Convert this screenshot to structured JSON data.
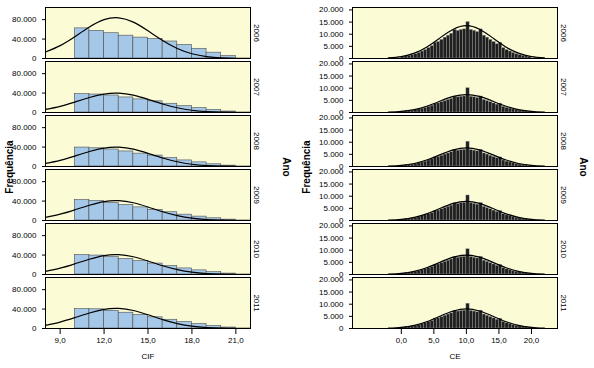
{
  "chart_data": [
    {
      "type": "histogram",
      "x_label": "CIF",
      "y_label": "Frequência",
      "facet_label": "Ano",
      "xlim": [
        8,
        22
      ],
      "xticks": [
        {
          "value": 9,
          "label": "9,0"
        },
        {
          "value": 12,
          "label": "12,0"
        },
        {
          "value": 15,
          "label": "15,0"
        },
        {
          "value": 18,
          "label": "18,0"
        },
        {
          "value": 21,
          "label": "21,0"
        }
      ],
      "ylim": [
        0,
        105000
      ],
      "yticks": [
        0,
        {
          "value": 40000,
          "label": "40.000"
        },
        {
          "value": 80000,
          "label": "80.000"
        }
      ],
      "color": "#a6c8e8",
      "curve_color": "#000000",
      "bins": [
        10,
        11,
        12,
        13,
        14,
        15,
        16,
        17,
        18,
        19,
        20,
        21
      ],
      "curve_x": [
        8,
        9,
        10,
        11,
        12,
        13,
        14,
        15,
        16,
        17,
        18,
        19,
        20,
        21,
        22
      ],
      "facets": [
        {
          "name": "2006",
          "counts": [
            62000,
            57000,
            52000,
            47000,
            43000,
            40000,
            35000,
            28000,
            20000,
            12000,
            5000
          ],
          "curve": [
            13300,
            26500,
            44900,
            64800,
            79900,
            83700,
            74900,
            57000,
            37000,
            20500,
            9700,
            3900,
            1300,
            400,
            100
          ]
        },
        {
          "name": "2007",
          "counts": [
            38000,
            37000,
            35000,
            31000,
            27000,
            23000,
            18000,
            13000,
            9000,
            5000,
            2000
          ],
          "curve": [
            6300,
            12600,
            21400,
            30800,
            38000,
            39800,
            35700,
            27100,
            17600,
            9800,
            4600,
            1860,
            620,
            190,
            50
          ]
        },
        {
          "name": "2008",
          "counts": [
            39000,
            37500,
            35000,
            31000,
            26500,
            22500,
            17500,
            12500,
            8500,
            4500,
            1800
          ],
          "curve": [
            6300,
            12600,
            21400,
            30800,
            38000,
            39800,
            35700,
            27100,
            17600,
            9800,
            4600,
            1860,
            620,
            190,
            50
          ]
        },
        {
          "name": "2009",
          "counts": [
            42000,
            40000,
            36000,
            32000,
            27000,
            22000,
            17000,
            12000,
            8000,
            4500,
            1800
          ],
          "curve": [
            6500,
            13000,
            22000,
            31500,
            39000,
            40800,
            36500,
            27800,
            18000,
            10000,
            4700,
            1900,
            640,
            200,
            50
          ]
        },
        {
          "name": "2010",
          "counts": [
            40000,
            39000,
            36000,
            32000,
            27500,
            22500,
            17500,
            12500,
            8500,
            4800,
            1900
          ],
          "curve": [
            6500,
            13000,
            22000,
            31500,
            39000,
            40800,
            36500,
            27800,
            18000,
            10000,
            4700,
            1900,
            640,
            200,
            50
          ]
        },
        {
          "name": "2011",
          "counts": [
            40000,
            39500,
            36500,
            32500,
            28000,
            23000,
            18000,
            13000,
            9000,
            5000,
            2000
          ],
          "curve": [
            6600,
            13200,
            22300,
            32000,
            39500,
            41300,
            37000,
            28200,
            18300,
            10200,
            4800,
            1950,
            650,
            200,
            50
          ]
        }
      ]
    },
    {
      "type": "histogram",
      "x_label": "CE",
      "y_label": "Frequência",
      "facet_label": "Ano",
      "xlim": [
        -7.5,
        24
      ],
      "xticks": [
        {
          "value": 0,
          "label": "0,0"
        },
        {
          "value": 5,
          "label": "5,0"
        },
        {
          "value": 10,
          "label": "10,0"
        },
        {
          "value": 15,
          "label": "15,0"
        },
        {
          "value": 20,
          "label": "20,0"
        }
      ],
      "ylim": [
        0,
        21000
      ],
      "yticks": [
        0,
        {
          "value": 5000,
          "label": "5.000"
        },
        {
          "value": 10000,
          "label": "10.000"
        },
        {
          "value": 15000,
          "label": "15.000"
        },
        {
          "value": 20000,
          "label": "20.000"
        }
      ],
      "color": "#1f1f1f",
      "curve_color": "#000000",
      "bins": [
        0,
        0.5,
        1,
        1.5,
        2,
        2.5,
        3,
        3.5,
        4,
        4.5,
        5,
        5.5,
        6,
        6.5,
        7,
        7.5,
        8,
        8.5,
        9,
        9.5,
        10,
        10.5,
        11,
        11.5,
        12,
        12.5,
        13,
        13.5,
        14,
        14.5,
        15,
        15.5,
        16,
        16.5,
        17,
        17.5,
        18,
        18.5,
        19,
        19.5,
        20
      ],
      "curve_x": [
        -2,
        0,
        2,
        4,
        6,
        8,
        10,
        12,
        14,
        16,
        18,
        20,
        22
      ],
      "facets": [
        {
          "name": "2006",
          "counts": [
            600,
            830,
            1100,
            1400,
            1800,
            2300,
            2900,
            3500,
            4300,
            5100,
            6500,
            6800,
            7700,
            8600,
            9400,
            10200,
            11800,
            11400,
            11800,
            12000,
            15000,
            11800,
            11400,
            10900,
            12000,
            9400,
            8600,
            7700,
            6800,
            5900,
            6500,
            4300,
            3500,
            2900,
            2300,
            1800,
            1400,
            1100,
            830,
            600
          ],
          "curve": [
            230,
            800,
            2200,
            4860,
            8590,
            12060,
            13500,
            12060,
            8590,
            4860,
            2200,
            800,
            230
          ]
        },
        {
          "name": "2007",
          "counts": [
            330,
            460,
            600,
            770,
            990,
            1270,
            1600,
            1930,
            2370,
            2800,
            3600,
            3740,
            4240,
            4730,
            5170,
            5610,
            6500,
            6270,
            6490,
            6600,
            10000,
            6490,
            6270,
            6000,
            6600,
            5170,
            4730,
            4240,
            3740,
            3250,
            3600,
            2370,
            1930,
            1600,
            1270,
            990,
            770,
            600,
            460,
            330
          ],
          "curve": [
            130,
            440,
            1210,
            2660,
            4710,
            6610,
            7400,
            6610,
            4710,
            2660,
            1210,
            440,
            130
          ]
        },
        {
          "name": "2008",
          "counts": [
            350,
            480,
            630,
            800,
            1030,
            1320,
            1660,
            2000,
            2460,
            2920,
            3750,
            3900,
            4410,
            4920,
            5380,
            5840,
            6760,
            6530,
            6760,
            6870,
            10200,
            6760,
            6530,
            6240,
            6870,
            5380,
            4920,
            4410,
            3900,
            3380,
            3750,
            2460,
            2000,
            1660,
            1320,
            1030,
            800,
            630,
            480,
            350
          ],
          "curve": [
            130,
            460,
            1250,
            2770,
            4900,
            6870,
            7700,
            6870,
            4900,
            2770,
            1250,
            460,
            130
          ]
        },
        {
          "name": "2009",
          "counts": [
            360,
            500,
            660,
            840,
            1080,
            1380,
            1740,
            2100,
            2580,
            3060,
            3900,
            4080,
            4620,
            5160,
            5640,
            6120,
            7080,
            6840,
            7080,
            7200,
            10300,
            7080,
            6840,
            6540,
            7200,
            5640,
            5160,
            4620,
            4080,
            3540,
            3900,
            2580,
            2100,
            1740,
            1380,
            1080,
            840,
            660,
            500,
            360
          ],
          "curve": [
            135,
            470,
            1290,
            2840,
            5030,
            7060,
            7900,
            7060,
            5030,
            2840,
            1290,
            470,
            135
          ]
        },
        {
          "name": "2010",
          "counts": [
            370,
            510,
            670,
            850,
            1100,
            1400,
            1760,
            2130,
            2610,
            3100,
            3950,
            4130,
            4680,
            5220,
            5700,
            6190,
            7150,
            6910,
            7150,
            7280,
            10400,
            7150,
            6910,
            6610,
            7280,
            5700,
            5220,
            4680,
            4130,
            3580,
            3950,
            2610,
            2130,
            1760,
            1400,
            1100,
            850,
            670,
            510,
            370
          ],
          "curve": [
            135,
            475,
            1300,
            2870,
            5080,
            7130,
            7980,
            7130,
            5080,
            2870,
            1300,
            475,
            135
          ]
        },
        {
          "name": "2011",
          "counts": [
            380,
            520,
            680,
            860,
            1110,
            1410,
            1780,
            2150,
            2640,
            3130,
            4000,
            4170,
            4720,
            5270,
            5760,
            6250,
            7220,
            6980,
            7220,
            7350,
            10200,
            7220,
            6980,
            6680,
            7350,
            5760,
            5270,
            4720,
            4170,
            3620,
            4000,
            2640,
            2150,
            1780,
            1410,
            1110,
            860,
            680,
            520,
            380
          ],
          "curve": [
            137,
            480,
            1310,
            2900,
            5130,
            7200,
            8060,
            7200,
            5130,
            2900,
            1310,
            480,
            137
          ]
        }
      ]
    }
  ]
}
